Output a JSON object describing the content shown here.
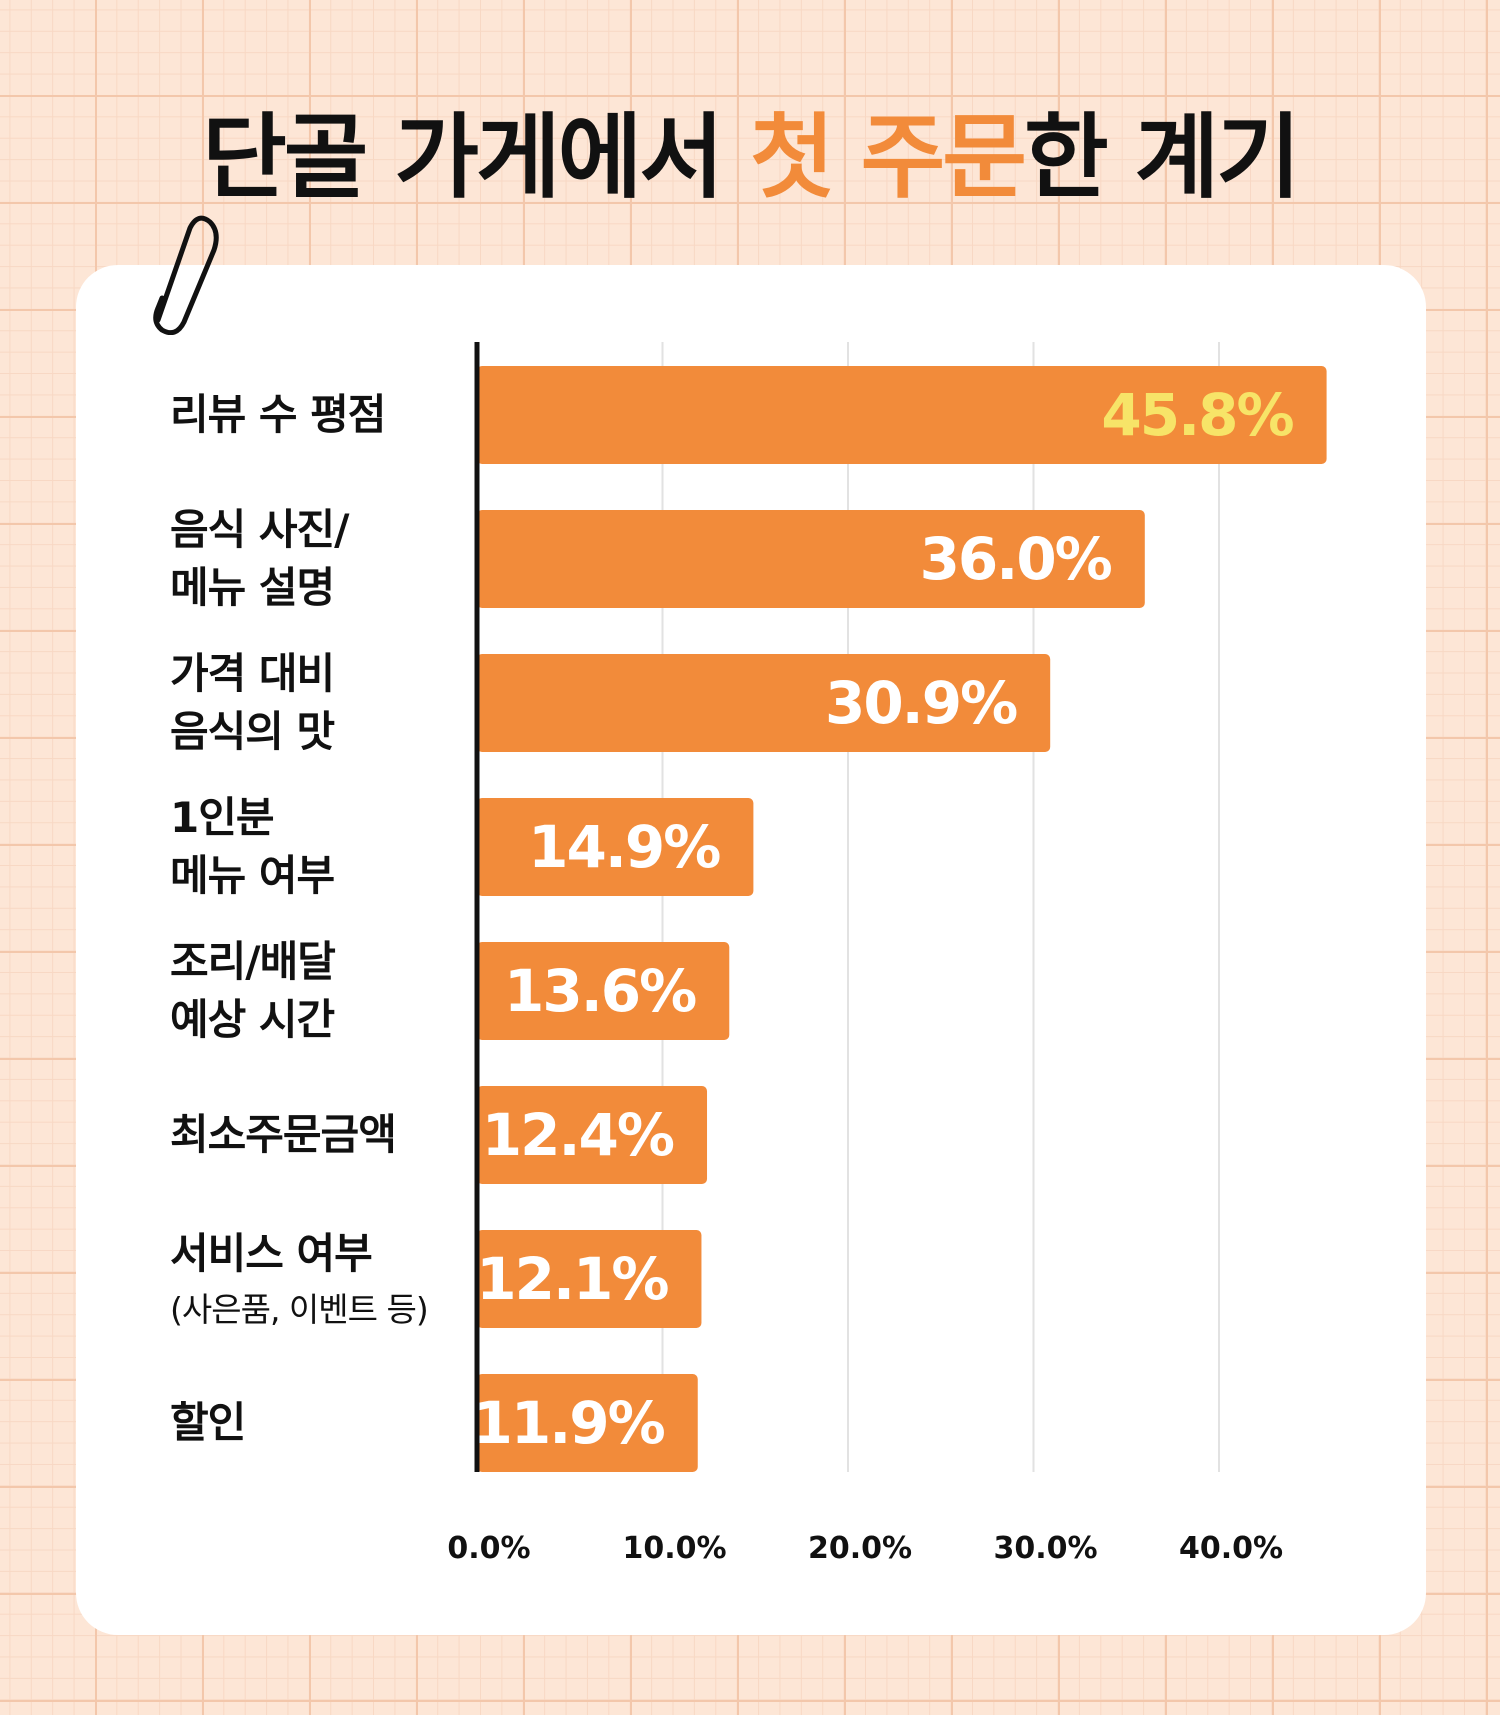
{
  "title": {
    "part1": "단골 가게에서 ",
    "highlight": "첫 주문",
    "part2": "한 계기"
  },
  "colors": {
    "bar": "#f28b3a",
    "label_default": "#ffffff",
    "label_top": "#f7e468",
    "highlight": "#f28b3a",
    "axis": "#111111",
    "grid": "#e2e2e2"
  },
  "icons": [
    "paperclip-icon"
  ],
  "chart_data": {
    "type": "bar",
    "orientation": "horizontal",
    "title": "단골 가게에서 첫 주문한 계기",
    "categories": [
      [
        "리뷰 수 평점"
      ],
      [
        "음식 사진/",
        "메뉴 설명"
      ],
      [
        "가격 대비",
        "음식의 맛"
      ],
      [
        "1인분",
        "메뉴 여부"
      ],
      [
        "조리/배달",
        "예상 시간"
      ],
      [
        "최소주문금액"
      ],
      [
        "서비스 여부",
        "(사은품, 이벤트 등)"
      ],
      [
        "할인"
      ]
    ],
    "values": [
      45.8,
      36.0,
      30.9,
      14.9,
      13.6,
      12.4,
      12.1,
      11.9
    ],
    "value_labels": [
      "45.8%",
      "36.0%",
      "30.9%",
      "14.9%",
      "13.6%",
      "12.4%",
      "12.1%",
      "11.9%"
    ],
    "xticks": [
      "0.0%",
      "10.0%",
      "20.0%",
      "30.0%",
      "40.0%"
    ],
    "xtick_values": [
      0,
      10,
      20,
      30,
      40
    ],
    "xlim": [
      0,
      46
    ],
    "grid": true,
    "legend": "none"
  }
}
